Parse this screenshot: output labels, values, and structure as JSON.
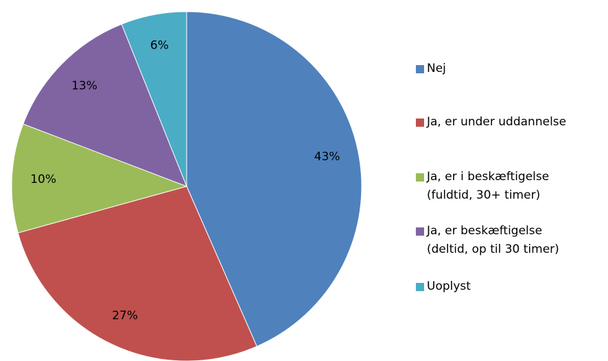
{
  "chart_data": {
    "type": "pie",
    "categories": [
      "Nej",
      "Ja, er under uddannelse",
      "Ja, er i beskæftigelse\n(fuldtid, 30+ timer)",
      "Ja, er beskæftigelse\n(deltid, op til 30 timer)",
      "Uoplyst"
    ],
    "values": [
      43,
      27,
      10,
      13,
      6
    ],
    "value_labels": [
      "43%",
      "27%",
      "10%",
      "13%",
      "6%"
    ],
    "colors": [
      "#4f81bd",
      "#c0504d",
      "#9bbb59",
      "#8064a2",
      "#4bacc6"
    ],
    "legend": "right"
  }
}
